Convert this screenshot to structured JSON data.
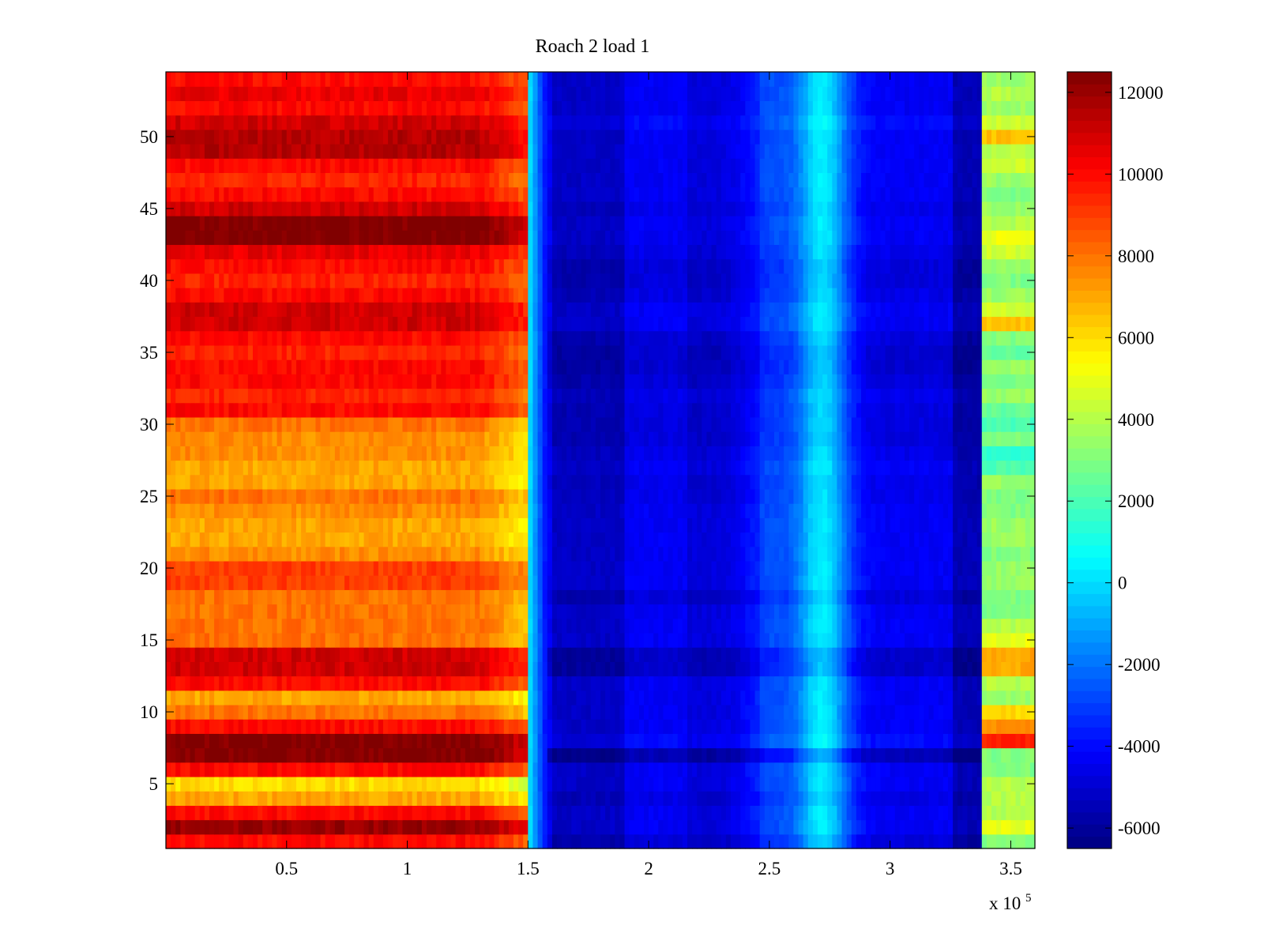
{
  "chart_data": {
    "type": "heatmap",
    "title": "Roach 2 load 1",
    "xlabel": "",
    "ylabel": "",
    "x_multiplier_label": {
      "base": "x 10",
      "exponent": "5"
    },
    "xlim": [
      0,
      3.6
    ],
    "ylim": [
      0.5,
      54.5
    ],
    "xticks": [
      {
        "value": 0.5,
        "label": "0.5"
      },
      {
        "value": 1,
        "label": "1"
      },
      {
        "value": 1.5,
        "label": "1.5"
      },
      {
        "value": 2,
        "label": "2"
      },
      {
        "value": 2.5,
        "label": "2.5"
      },
      {
        "value": 3,
        "label": "3"
      },
      {
        "value": 3.5,
        "label": "3.5"
      }
    ],
    "yticks": [
      {
        "value": 5,
        "label": "5"
      },
      {
        "value": 10,
        "label": "10"
      },
      {
        "value": 15,
        "label": "15"
      },
      {
        "value": 20,
        "label": "20"
      },
      {
        "value": 25,
        "label": "25"
      },
      {
        "value": 30,
        "label": "30"
      },
      {
        "value": 35,
        "label": "35"
      },
      {
        "value": 40,
        "label": "40"
      },
      {
        "value": 45,
        "label": "45"
      },
      {
        "value": 50,
        "label": "50"
      }
    ],
    "colorbar": {
      "colormap": "jet",
      "range": [
        -6500,
        12500
      ],
      "ticks": [
        {
          "value": 12000,
          "label": "12000"
        },
        {
          "value": 10000,
          "label": "10000"
        },
        {
          "value": 8000,
          "label": "8000"
        },
        {
          "value": 6000,
          "label": "6000"
        },
        {
          "value": 4000,
          "label": "4000"
        },
        {
          "value": 2000,
          "label": "2000"
        },
        {
          "value": 0,
          "label": "0"
        },
        {
          "value": -2000,
          "label": "-2000"
        },
        {
          "value": -4000,
          "label": "-4000"
        },
        {
          "value": -6000,
          "label": "-6000"
        }
      ]
    },
    "rows": 54,
    "x_regions": [
      {
        "x_start": 0,
        "x_end": 1.5,
        "level": "high",
        "approx_value_range": [
          5000,
          12500
        ]
      },
      {
        "x_start": 1.5,
        "x_end": 2.6,
        "level": "low",
        "approx_value_range": [
          -6500,
          -3500
        ]
      },
      {
        "x_start": 2.6,
        "x_end": 2.85,
        "level": "medium-low",
        "approx_value_range": [
          -1500,
          500
        ]
      },
      {
        "x_start": 2.85,
        "x_end": 3.38,
        "level": "low",
        "approx_value_range": [
          -6000,
          -3500
        ]
      },
      {
        "x_start": 3.38,
        "x_end": 3.6,
        "level": "medium",
        "approx_value_range": [
          1500,
          9500
        ]
      }
    ],
    "row_levels_left_region": [
      10000,
      12000,
      10000,
      7000,
      6000,
      10000,
      12500,
      12500,
      10000,
      8000,
      7000,
      10000,
      11000,
      11000,
      8000,
      8000,
      8000,
      8000,
      9000,
      9000,
      7500,
      7000,
      7000,
      7500,
      8000,
      7000,
      7000,
      7500,
      7500,
      8000,
      10000,
      9500,
      10000,
      10000,
      9500,
      10000,
      11000,
      11000,
      10000,
      9500,
      10000,
      10500,
      12500,
      12500,
      11000,
      10000,
      9500,
      10000,
      11500,
      11500,
      11000,
      10000,
      10500,
      10000
    ],
    "row_levels_right_region": [
      3000,
      5000,
      4000,
      4000,
      4000,
      3000,
      3000,
      9500,
      7500,
      6000,
      3500,
      4000,
      7000,
      7000,
      5000,
      4000,
      3000,
      3000,
      3500,
      3500,
      3000,
      3500,
      3500,
      3000,
      3000,
      3500,
      2000,
      1500,
      3000,
      2000,
      2500,
      3500,
      3000,
      3500,
      2500,
      3000,
      6500,
      4500,
      3500,
      3000,
      3500,
      4500,
      5000,
      4000,
      3500,
      3000,
      3500,
      4500,
      4000,
      6500,
      4500,
      3500,
      4000,
      3500
    ],
    "row_offsets_blue_region": [
      -500,
      0,
      0,
      -300,
      0,
      0,
      -1200,
      300,
      0,
      0,
      0,
      0,
      -800,
      -800,
      0,
      0,
      0,
      -500,
      0,
      0,
      0,
      0,
      0,
      0,
      -200,
      -200,
      0,
      -200,
      -400,
      -400,
      -400,
      -200,
      -500,
      -700,
      -700,
      -500,
      0,
      0,
      -300,
      -500,
      -500,
      -200,
      0,
      0,
      -200,
      0,
      0,
      0,
      0,
      0,
      300,
      0,
      0,
      0
    ]
  }
}
